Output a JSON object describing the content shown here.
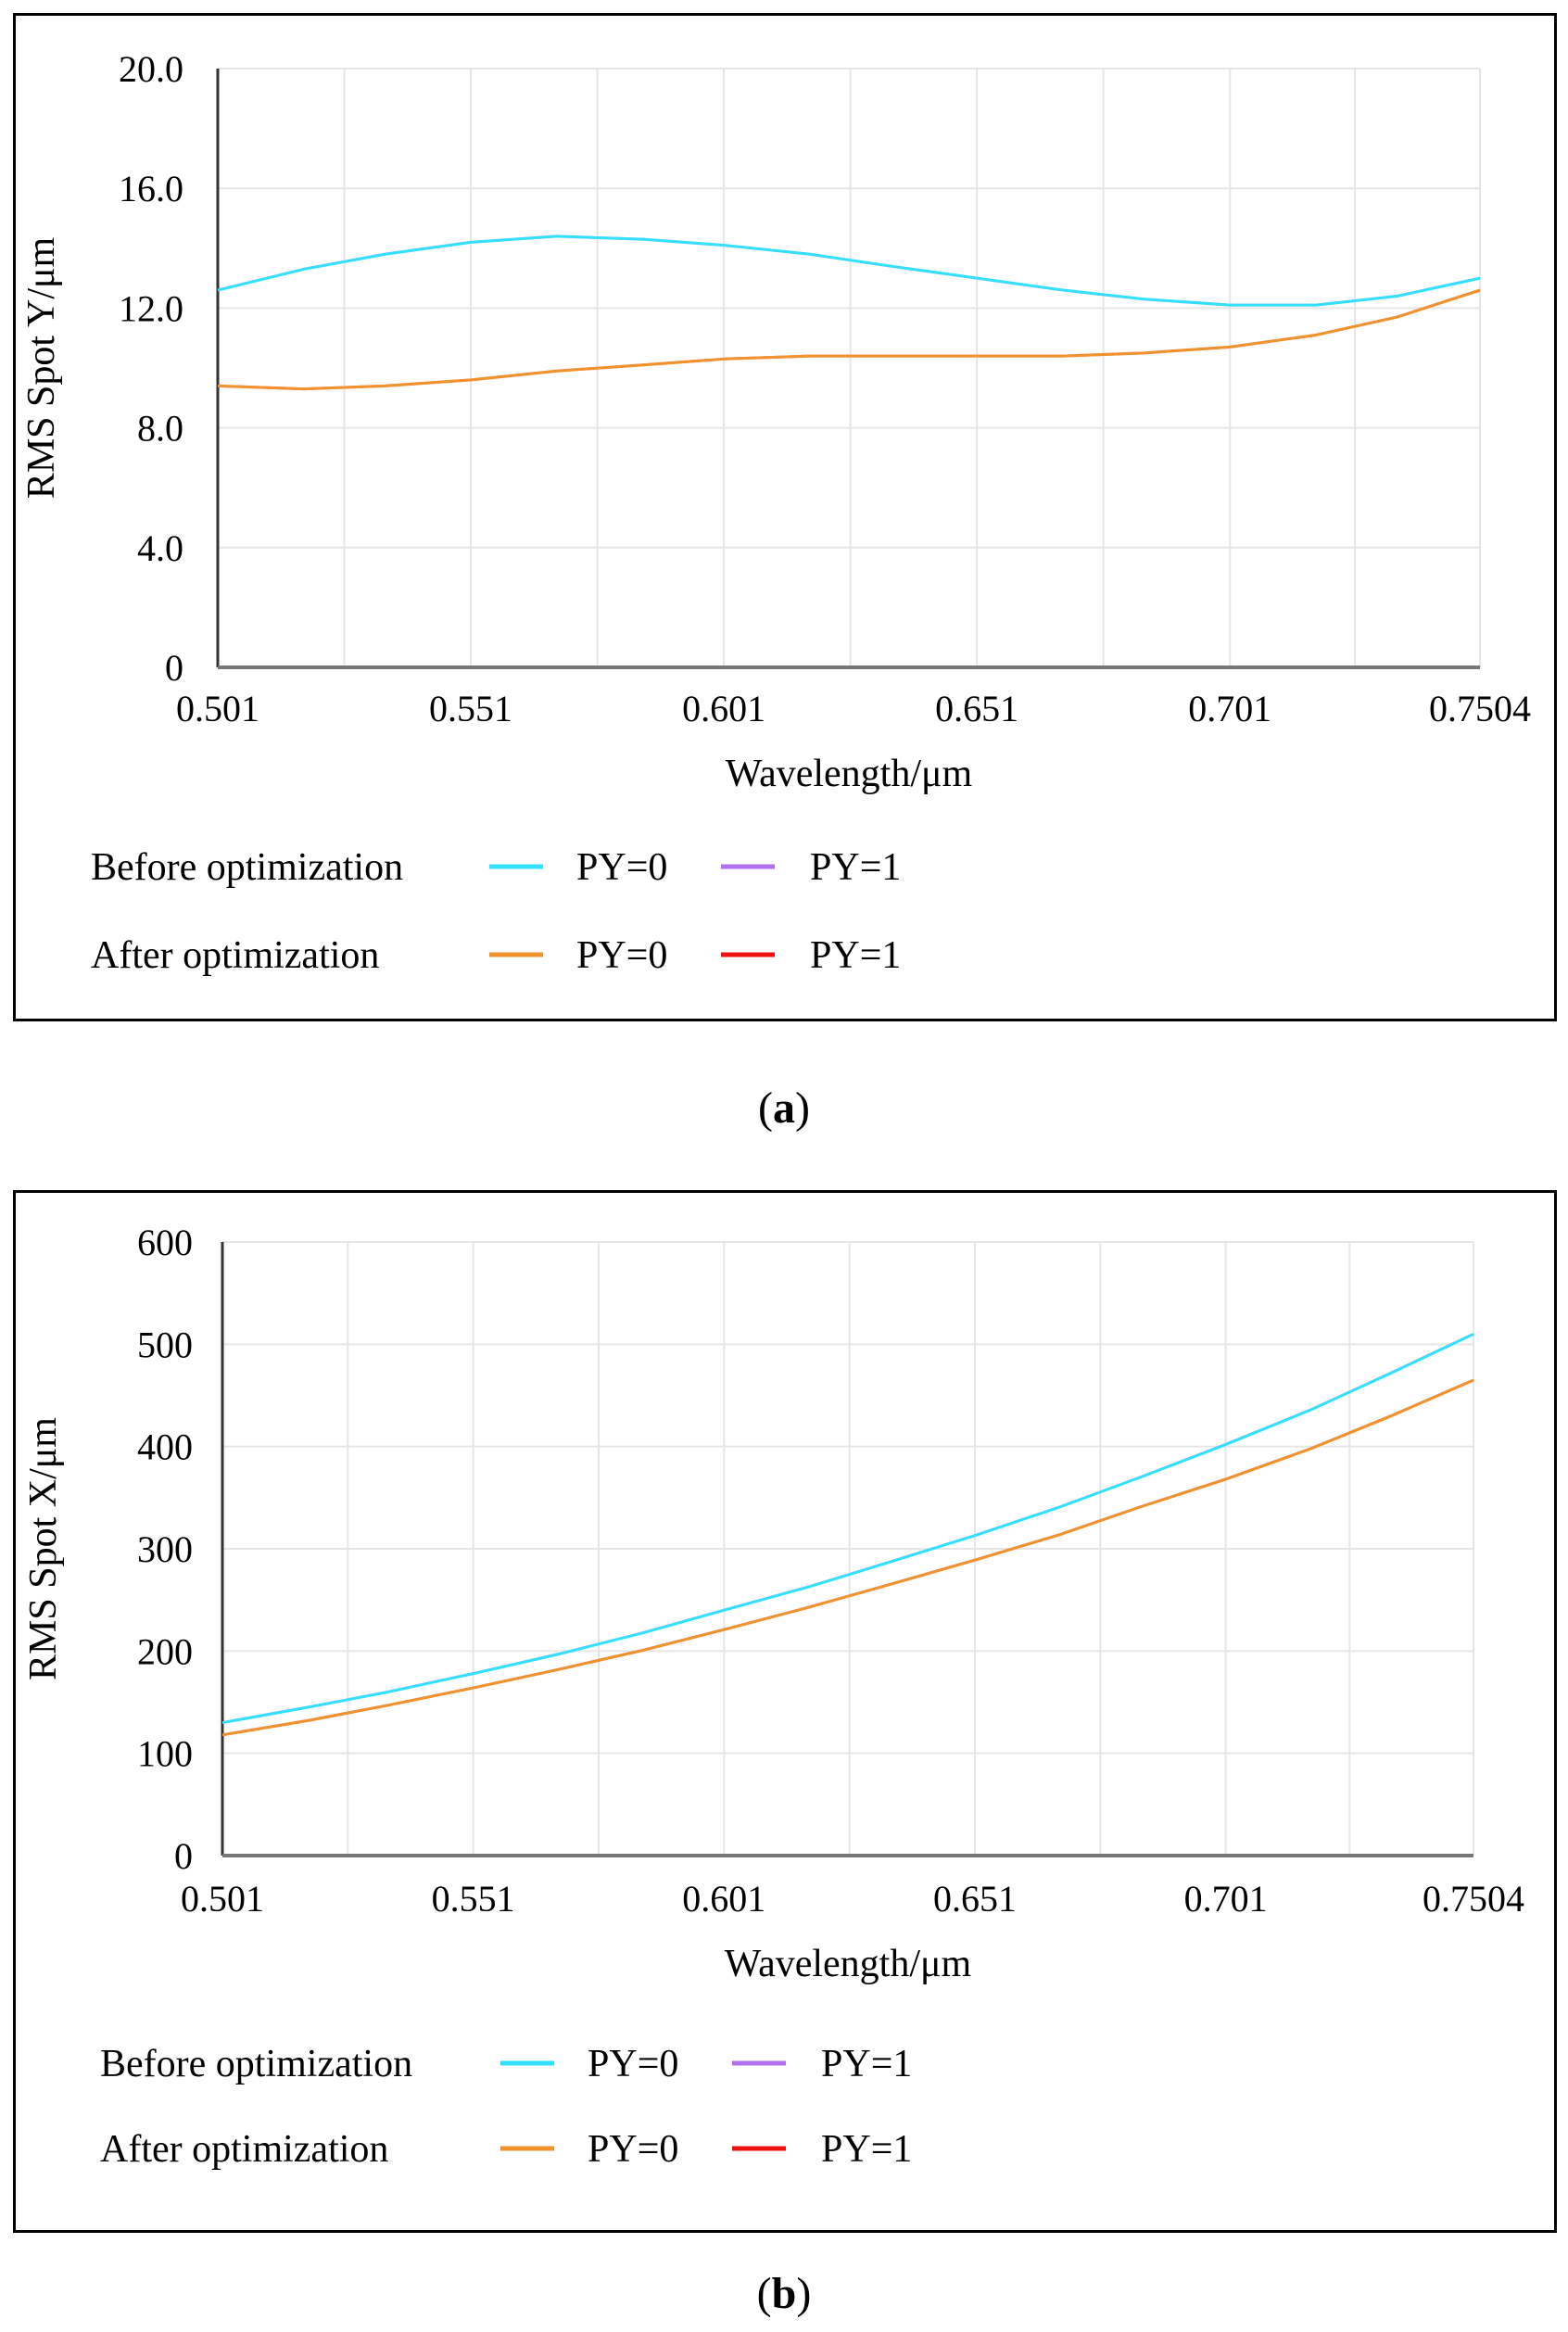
{
  "chart_data": [
    {
      "panel": "a",
      "type": "line",
      "caption": "a",
      "xlabel": "Wavelength/μm",
      "ylabel": "RMS Spot Y/μm",
      "x_ticks": [
        "0.501",
        "0.551",
        "0.601",
        "0.651",
        "0.701",
        "0.7504"
      ],
      "y_ticks": [
        "0",
        "4.0",
        "8.0",
        "12.0",
        "16.0",
        "20.0"
      ],
      "xlim": [
        0.501,
        0.7504
      ],
      "ylim": [
        0,
        20
      ],
      "grid": true,
      "legend_groups": [
        {
          "label": "Before optimization",
          "entries": [
            {
              "name": "PY=0",
              "color": "#33e0ff"
            },
            {
              "name": "PY=1",
              "color": "#b070f0"
            }
          ]
        },
        {
          "label": "After optimization",
          "entries": [
            {
              "name": "PY=0",
              "color": "#f0922e"
            },
            {
              "name": "PY=1",
              "color": "#ee1111"
            }
          ]
        }
      ],
      "series": [
        {
          "group": "Before optimization",
          "name": "PY=0",
          "color": "#33e0ff",
          "x": [
            0.501,
            0.518,
            0.534,
            0.551,
            0.568,
            0.585,
            0.601,
            0.618,
            0.634,
            0.651,
            0.668,
            0.684,
            0.701,
            0.718,
            0.734,
            0.7504
          ],
          "y": [
            12.6,
            13.3,
            13.8,
            14.2,
            14.4,
            14.3,
            14.1,
            13.8,
            13.4,
            13.0,
            12.6,
            12.3,
            12.1,
            12.1,
            12.4,
            13.0
          ]
        },
        {
          "group": "Before optimization",
          "name": "PY=1",
          "color": "#b070f0",
          "x": [
            0.501,
            0.518,
            0.534,
            0.551,
            0.568,
            0.585,
            0.601,
            0.618,
            0.634,
            0.651,
            0.668,
            0.684,
            0.701,
            0.718,
            0.734,
            0.7504
          ],
          "y": [
            12.6,
            13.3,
            13.8,
            14.2,
            14.4,
            14.3,
            14.1,
            13.8,
            13.4,
            13.0,
            12.6,
            12.3,
            12.1,
            12.1,
            12.4,
            13.0
          ]
        },
        {
          "group": "After optimization",
          "name": "PY=0",
          "color": "#f0922e",
          "x": [
            0.501,
            0.518,
            0.534,
            0.551,
            0.568,
            0.585,
            0.601,
            0.618,
            0.634,
            0.651,
            0.668,
            0.684,
            0.701,
            0.718,
            0.734,
            0.7504
          ],
          "y": [
            9.4,
            9.3,
            9.4,
            9.6,
            9.9,
            10.1,
            10.3,
            10.4,
            10.4,
            10.4,
            10.4,
            10.5,
            10.7,
            11.1,
            11.7,
            12.6
          ]
        },
        {
          "group": "After optimization",
          "name": "PY=1",
          "color": "#ee1111",
          "x": [
            0.501,
            0.518,
            0.534,
            0.551,
            0.568,
            0.585,
            0.601,
            0.618,
            0.634,
            0.651,
            0.668,
            0.684,
            0.701,
            0.718,
            0.734,
            0.7504
          ],
          "y": [
            9.4,
            9.3,
            9.4,
            9.6,
            9.9,
            10.1,
            10.3,
            10.4,
            10.4,
            10.4,
            10.4,
            10.5,
            10.7,
            11.1,
            11.7,
            12.6
          ]
        }
      ]
    },
    {
      "panel": "b",
      "type": "line",
      "caption": "b",
      "xlabel": "Wavelength/μm",
      "ylabel": "RMS Spot X/μm",
      "x_ticks": [
        "0.501",
        "0.551",
        "0.601",
        "0.651",
        "0.701",
        "0.7504"
      ],
      "y_ticks": [
        "0",
        "100",
        "200",
        "300",
        "400",
        "500",
        "600"
      ],
      "xlim": [
        0.501,
        0.7504
      ],
      "ylim": [
        0,
        600
      ],
      "grid": true,
      "legend_groups": [
        {
          "label": "Before optimization",
          "entries": [
            {
              "name": "PY=0",
              "color": "#33e0ff"
            },
            {
              "name": "PY=1",
              "color": "#b070f0"
            }
          ]
        },
        {
          "label": "After optimization",
          "entries": [
            {
              "name": "PY=0",
              "color": "#f0922e"
            },
            {
              "name": "PY=1",
              "color": "#ee1111"
            }
          ]
        }
      ],
      "series": [
        {
          "group": "Before optimization",
          "name": "PY=0",
          "color": "#33e0ff",
          "x": [
            0.501,
            0.518,
            0.534,
            0.551,
            0.568,
            0.585,
            0.601,
            0.618,
            0.634,
            0.651,
            0.668,
            0.684,
            0.701,
            0.718,
            0.734,
            0.7504
          ],
          "y": [
            130,
            145,
            160,
            178,
            197,
            218,
            240,
            263,
            287,
            313,
            341,
            370,
            402,
            436,
            472,
            510
          ]
        },
        {
          "group": "Before optimization",
          "name": "PY=1",
          "color": "#b070f0",
          "x": [
            0.501,
            0.518,
            0.534,
            0.551,
            0.568,
            0.585,
            0.601,
            0.618,
            0.634,
            0.651,
            0.668,
            0.684,
            0.701,
            0.718,
            0.734,
            0.7504
          ],
          "y": [
            130,
            145,
            160,
            178,
            197,
            218,
            240,
            263,
            287,
            313,
            341,
            370,
            402,
            436,
            472,
            510
          ]
        },
        {
          "group": "After optimization",
          "name": "PY=0",
          "color": "#f0922e",
          "x": [
            0.501,
            0.518,
            0.534,
            0.551,
            0.568,
            0.585,
            0.601,
            0.618,
            0.634,
            0.651,
            0.668,
            0.684,
            0.701,
            0.718,
            0.734,
            0.7504
          ],
          "y": [
            118,
            132,
            147,
            164,
            182,
            201,
            221,
            243,
            265,
            289,
            314,
            341,
            368,
            398,
            430,
            465
          ]
        },
        {
          "group": "After optimization",
          "name": "PY=1",
          "color": "#ee1111",
          "x": [
            0.501,
            0.518,
            0.534,
            0.551,
            0.568,
            0.585,
            0.601,
            0.618,
            0.634,
            0.651,
            0.668,
            0.684,
            0.701,
            0.718,
            0.734,
            0.7504
          ],
          "y": [
            118,
            132,
            147,
            164,
            182,
            201,
            221,
            243,
            265,
            289,
            314,
            341,
            368,
            398,
            430,
            465
          ]
        }
      ]
    }
  ]
}
